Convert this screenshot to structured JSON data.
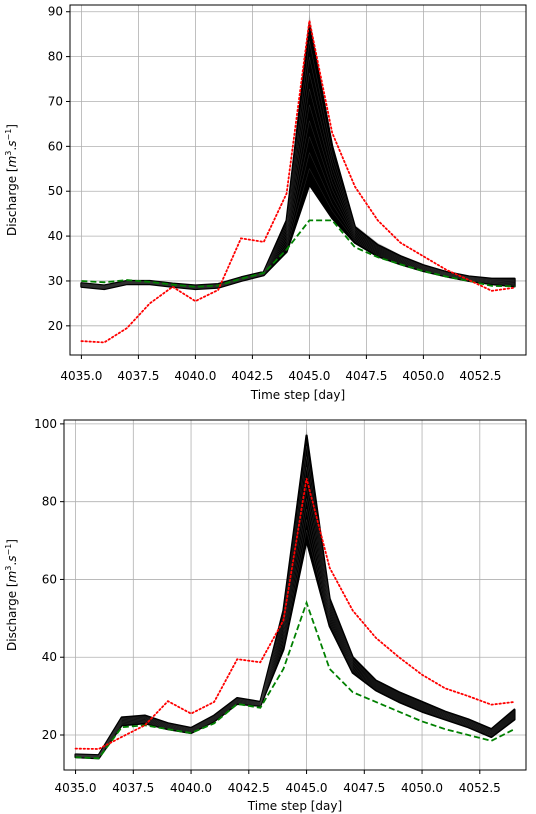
{
  "chart_data": [
    {
      "type": "line",
      "xlabel": "Time step [day]",
      "ylabel": "Discharge [m3.s-1]",
      "ylabel_parts": [
        "Discharge [",
        "m",
        "3",
        ".",
        "s",
        "−1",
        "]"
      ],
      "xlim": [
        4034.5,
        4054.5
      ],
      "ylim": [
        13.5,
        91.5
      ],
      "xticks": [
        4035.0,
        4037.5,
        4040.0,
        4042.5,
        4045.0,
        4047.5,
        4050.0,
        4052.5
      ],
      "xtick_labels": [
        "4035.0",
        "4037.5",
        "4040.0",
        "4042.5",
        "4045.0",
        "4047.5",
        "4050.0",
        "4052.5"
      ],
      "yticks": [
        20,
        30,
        40,
        50,
        60,
        70,
        80,
        90
      ],
      "ytick_labels": [
        "20",
        "30",
        "40",
        "50",
        "60",
        "70",
        "80",
        "90"
      ],
      "grid": true,
      "x": [
        4035,
        4036,
        4037,
        4038,
        4039,
        4040,
        4041,
        4042,
        4043,
        4044,
        4045,
        4046,
        4047,
        4048,
        4049,
        4050,
        4051,
        4052,
        4053,
        4054
      ],
      "series": [
        {
          "style": "ensemble-envelope",
          "color": "#000000",
          "lower": [
            28.7,
            28.2,
            29.3,
            29.3,
            28.7,
            28.2,
            28.5,
            30.0,
            31.3,
            36.5,
            51.5,
            44.0,
            38.5,
            35.5,
            33.7,
            32.2,
            31.0,
            30.0,
            29.3,
            28.8
          ],
          "upper": [
            29.5,
            29.0,
            30.0,
            30.0,
            29.4,
            29.0,
            29.3,
            30.8,
            32.0,
            43.5,
            87.0,
            60.0,
            42.0,
            38.0,
            35.5,
            33.5,
            32.0,
            31.0,
            30.5,
            30.5
          ],
          "max": [
            29.6,
            29.1,
            30.1,
            30.1,
            29.5,
            29.1,
            29.4,
            30.9,
            32.1,
            44.0,
            89.5,
            61.0,
            42.5,
            38.5,
            35.8,
            33.8,
            32.2,
            31.2,
            30.7,
            30.8
          ]
        },
        {
          "style": "dashed",
          "color": "#008000",
          "values": [
            30.0,
            29.7,
            30.2,
            29.8,
            29.2,
            28.7,
            29.0,
            30.5,
            31.8,
            37.0,
            43.5,
            43.5,
            37.5,
            35.3,
            33.7,
            32.2,
            31.0,
            30.0,
            28.9,
            28.8
          ]
        },
        {
          "style": "dotted",
          "color": "#ff0000",
          "values": [
            16.6,
            16.3,
            19.5,
            25.0,
            28.7,
            25.5,
            28.0,
            39.5,
            38.7,
            49.5,
            88.0,
            63.0,
            51.0,
            43.5,
            38.5,
            35.5,
            32.5,
            30.2,
            27.8,
            28.5
          ]
        }
      ]
    },
    {
      "type": "line",
      "xlabel": "Time step [day]",
      "ylabel": "Discharge [m3.s-1]",
      "ylabel_parts": [
        "Discharge [",
        "m",
        "3",
        ".",
        "s",
        "−1",
        "]"
      ],
      "xlim": [
        4034.5,
        4054.5
      ],
      "ylim": [
        11,
        101
      ],
      "xticks": [
        4035.0,
        4037.5,
        4040.0,
        4042.5,
        4045.0,
        4047.5,
        4050.0,
        4052.5
      ],
      "xtick_labels": [
        "4035.0",
        "4037.5",
        "4040.0",
        "4042.5",
        "4045.0",
        "4047.5",
        "4050.0",
        "4052.5"
      ],
      "yticks": [
        20,
        40,
        60,
        80,
        100
      ],
      "ytick_labels": [
        "20",
        "40",
        "60",
        "80",
        "100"
      ],
      "grid": true,
      "x": [
        4035,
        4036,
        4037,
        4038,
        4039,
        4040,
        4041,
        4042,
        4043,
        4044,
        4045,
        4046,
        4047,
        4048,
        4049,
        4050,
        4051,
        4052,
        4053,
        4054
      ],
      "series": [
        {
          "style": "ensemble-envelope",
          "color": "#000000",
          "lower": [
            14.3,
            14.0,
            22.5,
            23.0,
            21.5,
            20.5,
            23.5,
            28.0,
            27.5,
            42.0,
            70.0,
            48.0,
            36.0,
            31.5,
            28.5,
            26.0,
            24.0,
            22.0,
            19.5,
            24.0
          ],
          "upper": [
            15.0,
            14.8,
            24.5,
            25.0,
            23.0,
            21.8,
            25.0,
            29.5,
            28.5,
            52.0,
            97.0,
            55.0,
            40.0,
            34.0,
            31.0,
            28.5,
            26.0,
            24.0,
            21.5,
            26.5
          ],
          "max": [
            15.1,
            14.9,
            24.8,
            25.3,
            23.3,
            22.0,
            25.2,
            29.7,
            28.7,
            53.0,
            99.0,
            56.0,
            40.5,
            34.3,
            31.3,
            28.8,
            26.3,
            24.3,
            21.8,
            27.0
          ]
        },
        {
          "style": "dashed",
          "color": "#008000",
          "values": [
            14.3,
            14.0,
            22.0,
            22.5,
            21.5,
            20.5,
            23.0,
            28.0,
            27.0,
            37.0,
            54.0,
            37.0,
            31.0,
            28.5,
            26.0,
            23.5,
            21.5,
            20.0,
            18.5,
            21.5
          ]
        },
        {
          "style": "dotted",
          "color": "#ff0000",
          "values": [
            16.5,
            16.4,
            19.5,
            22.5,
            28.7,
            25.5,
            28.5,
            39.5,
            38.7,
            49.5,
            86.0,
            63.0,
            52.0,
            45.0,
            40.0,
            35.5,
            32.0,
            30.0,
            27.8,
            28.5
          ]
        }
      ]
    }
  ]
}
